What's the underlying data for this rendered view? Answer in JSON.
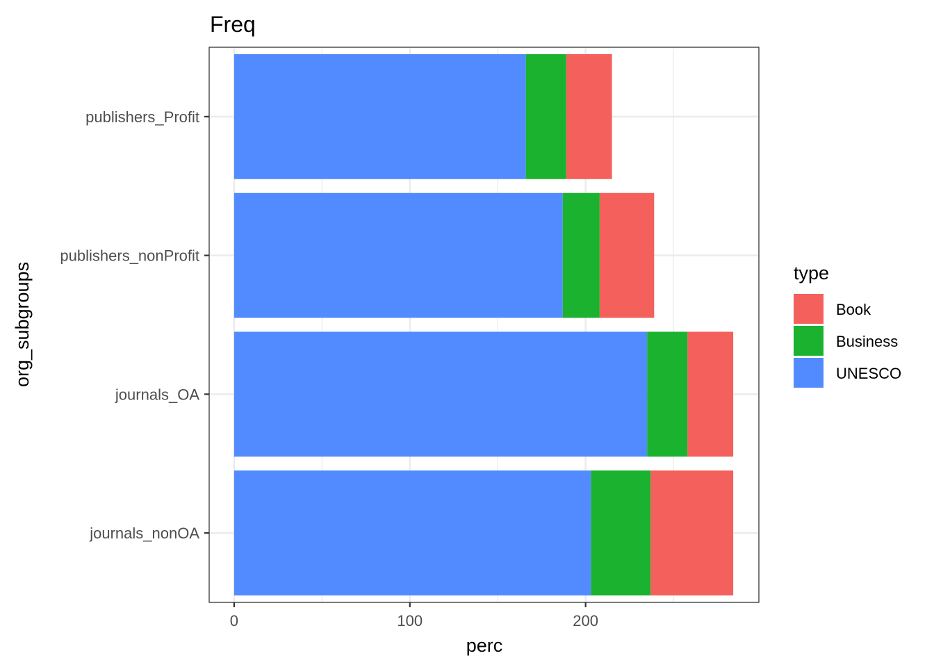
{
  "chart_data": {
    "type": "bar",
    "orientation": "horizontal",
    "stacked": true,
    "title": "Freq",
    "xlabel": "perc",
    "ylabel": "org_subgroups",
    "categories": [
      "journals_nonOA",
      "journals_OA",
      "publishers_nonProfit",
      "publishers_Profit"
    ],
    "series": [
      {
        "name": "UNESCO",
        "color": "#528bff",
        "values": [
          203,
          235,
          187,
          166
        ]
      },
      {
        "name": "Business",
        "color": "#1ab22f",
        "values": [
          34,
          23,
          21,
          23
        ]
      },
      {
        "name": "Book",
        "color": "#f4605b",
        "values": [
          47,
          26,
          31,
          26
        ]
      }
    ],
    "stack_order": [
      "UNESCO",
      "Business",
      "Book"
    ],
    "xlim": [
      -14.2,
      298.6
    ],
    "xticks": [
      0,
      100,
      200
    ],
    "grid": true,
    "legend": {
      "title": "type",
      "position": "right",
      "items": [
        "Book",
        "Business",
        "UNESCO"
      ]
    }
  }
}
